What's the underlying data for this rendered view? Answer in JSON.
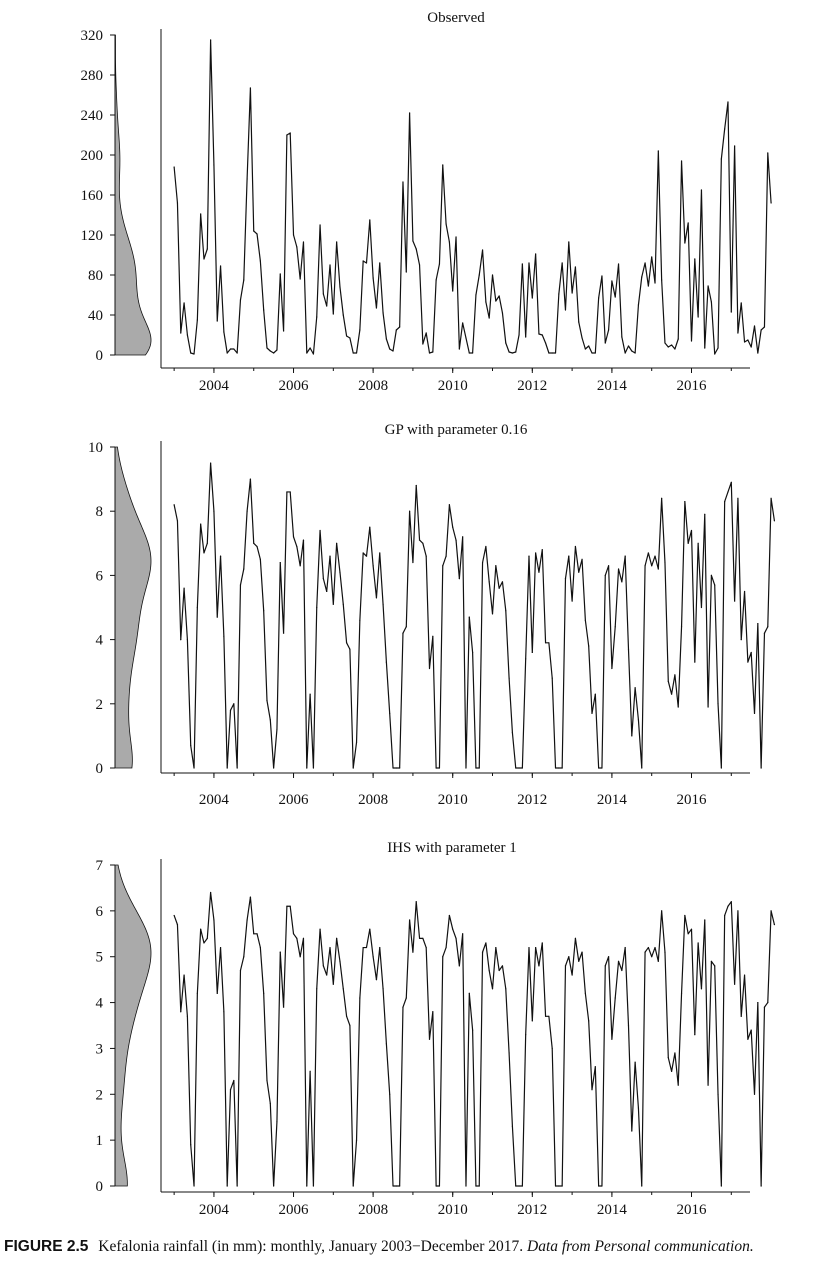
{
  "caption": {
    "label": "FIGURE 2.5",
    "text": "Kefalonia rainfall (in mm): monthly, January 2003−December 2017.",
    "source": "Data from Personal communication."
  },
  "colors": {
    "line": "#111111",
    "density_fill": "#aaaaaa",
    "axis": "#111111"
  },
  "chart_data": [
    {
      "type": "line",
      "title": "Observed",
      "ylim": [
        0,
        320
      ],
      "yticks": [
        "0",
        "40",
        "80",
        "120",
        "160",
        "200",
        "240",
        "280",
        "320"
      ],
      "xticks": [
        "2004",
        "2006",
        "2008",
        "2010",
        "2012",
        "2014",
        "2016"
      ],
      "x_start": 2003.0,
      "x_step": 0.0833333,
      "values": [
        188,
        152,
        22,
        52,
        20,
        2,
        1,
        35,
        141,
        96,
        106,
        315,
        190,
        34,
        89,
        23,
        2,
        6,
        6,
        2,
        55,
        75,
        176,
        267,
        124,
        121,
        94,
        45,
        7,
        4,
        2,
        5,
        81,
        24,
        220,
        222,
        120,
        108,
        76,
        113,
        2,
        7,
        1,
        38,
        130,
        61,
        49,
        90,
        41,
        113,
        68,
        40,
        19,
        17,
        2,
        2,
        25,
        94,
        92,
        135,
        77,
        47,
        92,
        42,
        16,
        6,
        4,
        25,
        28,
        173,
        83,
        242,
        114,
        106,
        90,
        11,
        22,
        2,
        3,
        75,
        91,
        190,
        131,
        113,
        64,
        118,
        6,
        32,
        17,
        2,
        2,
        60,
        80,
        105,
        53,
        37,
        80,
        54,
        59,
        42,
        12,
        3,
        2,
        3,
        20,
        91,
        18,
        92,
        57,
        101,
        21,
        20,
        12,
        2,
        2,
        2,
        61,
        92,
        45,
        113,
        62,
        88,
        33,
        17,
        6,
        9,
        2,
        2,
        57,
        79,
        12,
        25,
        74,
        58,
        91,
        18,
        2,
        9,
        4,
        2,
        50,
        78,
        92,
        69,
        98,
        72,
        204,
        75,
        12,
        8,
        10,
        6,
        16,
        194,
        112,
        132,
        14,
        96,
        38,
        165,
        7,
        69,
        53,
        1,
        7,
        196,
        226,
        253,
        43,
        209,
        22,
        52,
        13,
        15,
        8,
        29,
        2,
        25,
        28,
        202,
        152
      ]
    },
    {
      "type": "line",
      "title": "GP with parameter 0.16",
      "ylim": [
        0,
        10
      ],
      "yticks": [
        "0",
        "2",
        "4",
        "6",
        "8",
        "10"
      ],
      "xticks": [
        "2004",
        "2006",
        "2008",
        "2010",
        "2012",
        "2014",
        "2016"
      ],
      "x_start": 2003.0,
      "x_step": 0.0833333,
      "values": [
        8.2,
        7.7,
        4.0,
        5.6,
        4.0,
        0.7,
        0.0,
        5.0,
        7.6,
        6.7,
        7.0,
        9.5,
        8.0,
        4.7,
        6.6,
        4.1,
        0.0,
        1.8,
        2.0,
        0.0,
        5.7,
        6.2,
        8.0,
        9.0,
        7.0,
        6.9,
        6.5,
        4.9,
        2.1,
        1.5,
        0.0,
        1.2,
        6.4,
        4.2,
        8.6,
        8.6,
        7.2,
        6.9,
        6.3,
        7.1,
        0.0,
        2.3,
        0.0,
        5.0,
        7.4,
        5.9,
        5.5,
        6.6,
        5.1,
        7.0,
        6.1,
        5.1,
        3.9,
        3.7,
        0.0,
        0.8,
        4.6,
        6.7,
        6.6,
        7.5,
        6.3,
        5.3,
        6.7,
        5.1,
        3.3,
        1.7,
        0.0,
        0.0,
        0.0,
        4.2,
        4.4,
        8.0,
        6.4,
        8.8,
        7.1,
        7.0,
        6.6,
        3.1,
        4.1,
        0.0,
        0.0,
        6.3,
        6.6,
        8.2,
        7.5,
        7.1,
        5.9,
        7.2,
        0.0,
        4.7,
        3.6,
        0.0,
        0.0,
        6.4,
        6.9,
        5.8,
        4.8,
        6.3,
        5.6,
        5.8,
        4.9,
        2.8,
        1.1,
        0.0,
        0.0,
        0.0,
        3.4,
        6.6,
        3.6,
        6.7,
        6.1,
        6.8,
        3.9,
        3.9,
        2.8,
        0.0,
        0.0,
        0.0,
        5.9,
        6.6,
        5.2,
        6.9,
        6.1,
        6.5,
        4.6,
        3.8,
        1.7,
        2.3,
        0.0,
        0.0,
        6.0,
        6.3,
        3.1,
        4.4,
        6.2,
        5.8,
        6.6,
        3.7,
        1.0,
        2.5,
        1.5,
        0.0,
        6.3,
        6.7,
        6.3,
        6.6,
        6.2,
        8.4,
        6.4,
        2.7,
        2.3,
        2.9,
        1.9,
        4.4,
        8.3,
        7.0,
        7.4,
        3.3,
        7.0,
        5.0,
        7.9,
        1.9,
        6.0,
        5.7,
        2.0,
        0.0,
        8.3,
        8.6,
        8.9,
        5.2,
        8.4,
        4.0,
        5.5,
        3.3,
        3.6,
        1.7,
        4.5,
        0.0,
        4.2,
        4.4,
        8.4,
        7.7
      ]
    },
    {
      "type": "line",
      "title": "IHS with parameter 1",
      "ylim": [
        0,
        7
      ],
      "yticks": [
        "0",
        "1",
        "2",
        "3",
        "4",
        "5",
        "6",
        "7"
      ],
      "xticks": [
        "2004",
        "2006",
        "2008",
        "2010",
        "2012",
        "2014",
        "2016"
      ],
      "x_start": 2003.0,
      "x_step": 0.0833333,
      "values": [
        5.9,
        5.7,
        3.8,
        4.6,
        3.7,
        0.9,
        0.0,
        4.2,
        5.6,
        5.3,
        5.4,
        6.4,
        5.8,
        4.2,
        5.2,
        3.8,
        0.0,
        2.1,
        2.3,
        0.0,
        4.7,
        5.0,
        5.8,
        6.3,
        5.5,
        5.5,
        5.2,
        4.2,
        2.3,
        1.8,
        0.0,
        1.4,
        5.1,
        3.9,
        6.1,
        6.1,
        5.5,
        5.4,
        5.0,
        5.4,
        0.0,
        2.5,
        0.0,
        4.3,
        5.6,
        4.8,
        4.6,
        5.2,
        4.4,
        5.4,
        4.9,
        4.3,
        3.7,
        3.5,
        0.0,
        1.0,
        4.1,
        5.2,
        5.2,
        5.6,
        5.0,
        4.5,
        5.2,
        4.3,
        3.1,
        2.0,
        0.0,
        0.0,
        0.0,
        3.9,
        4.1,
        5.8,
        5.1,
        6.2,
        5.4,
        5.4,
        5.2,
        3.2,
        3.8,
        0.0,
        0.0,
        5.0,
        5.2,
        5.9,
        5.6,
        5.4,
        4.8,
        5.5,
        0.0,
        4.2,
        3.4,
        0.0,
        0.0,
        5.1,
        5.3,
        4.7,
        4.3,
        5.2,
        4.7,
        4.8,
        4.3,
        2.9,
        1.3,
        0.0,
        0.0,
        0.0,
        3.3,
        5.2,
        3.6,
        5.2,
        4.8,
        5.3,
        3.7,
        3.7,
        3.0,
        0.0,
        0.0,
        0.0,
        4.8,
        5.0,
        4.6,
        5.4,
        4.9,
        5.1,
        4.2,
        3.6,
        2.1,
        2.6,
        0.0,
        0.0,
        4.8,
        5.0,
        3.2,
        4.1,
        4.9,
        4.7,
        5.2,
        3.5,
        1.2,
        2.7,
        1.7,
        0.0,
        5.1,
        5.2,
        5.0,
        5.2,
        4.9,
        6.0,
        5.1,
        2.8,
        2.5,
        2.9,
        2.2,
        4.2,
        5.9,
        5.5,
        5.6,
        3.3,
        5.3,
        4.3,
        5.8,
        2.2,
        4.9,
        4.8,
        2.0,
        0.0,
        5.9,
        6.1,
        6.2,
        4.4,
        6.0,
        3.7,
        4.6,
        3.2,
        3.4,
        2.0,
        4.0,
        0.0,
        3.9,
        4.0,
        6.0,
        5.7
      ]
    }
  ]
}
